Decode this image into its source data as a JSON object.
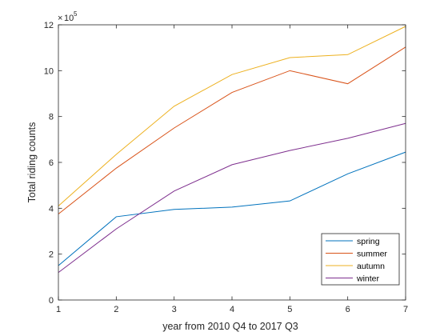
{
  "chart_data": {
    "type": "line",
    "xlabel": "year from 2010 Q4 to 2017 Q3",
    "ylabel": "Total riding counts",
    "x": [
      1,
      2,
      3,
      4,
      5,
      6,
      7
    ],
    "xlim": [
      1,
      7
    ],
    "ylim": [
      0,
      12
    ],
    "xticks": [
      "1",
      "2",
      "3",
      "4",
      "5",
      "6",
      "7"
    ],
    "yticks": [
      "0",
      "2",
      "4",
      "6",
      "8",
      "10",
      "12"
    ],
    "y_multiplier": "10",
    "y_multiplier_exponent": "5",
    "grid": false,
    "legend_position": "bottom-right",
    "series": [
      {
        "name": "spring",
        "color": "#0072BD",
        "values": [
          1.5,
          3.63,
          3.95,
          4.05,
          4.32,
          5.5,
          6.45
        ]
      },
      {
        "name": "summer",
        "color": "#D95319",
        "values": [
          3.75,
          5.75,
          7.5,
          9.05,
          10.0,
          9.43,
          11.03
        ]
      },
      {
        "name": "autumn",
        "color": "#EDB120",
        "values": [
          4.1,
          6.35,
          8.45,
          9.83,
          10.57,
          10.7,
          11.93
        ]
      },
      {
        "name": "winter",
        "color": "#7E2F8E",
        "values": [
          1.2,
          3.1,
          4.75,
          5.9,
          6.52,
          7.05,
          7.7
        ]
      }
    ]
  }
}
